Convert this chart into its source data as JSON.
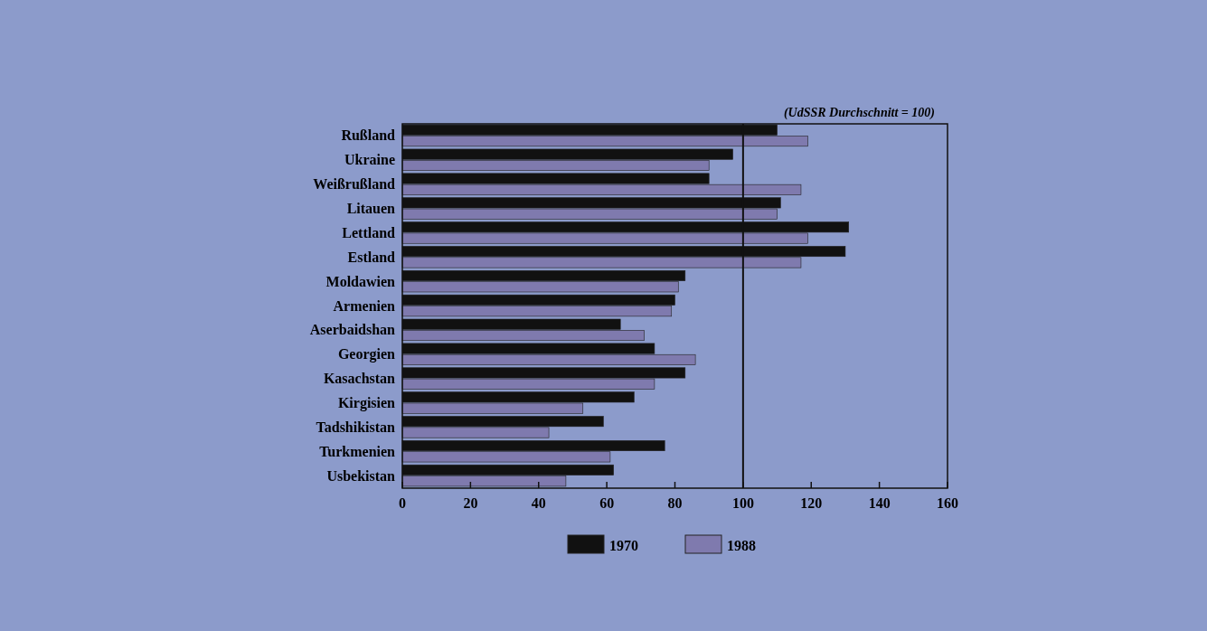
{
  "chart_data": {
    "type": "bar",
    "orientation": "horizontal",
    "categories": [
      "Rußland",
      "Ukraine",
      "Weißrußland",
      "Litauen",
      "Lettland",
      "Estland",
      "Moldawien",
      "Armenien",
      "Aserbaidshan",
      "Georgien",
      "Kasachstan",
      "Kirgisien",
      "Tadshikistan",
      "Turkmenien",
      "Usbekistan"
    ],
    "series": [
      {
        "name": "1970",
        "color": "#111111",
        "values": [
          110,
          97,
          90,
          111,
          131,
          130,
          83,
          80,
          64,
          74,
          83,
          68,
          59,
          77,
          62
        ]
      },
      {
        "name": "1988",
        "color": "#7f7aae",
        "values": [
          119,
          90,
          117,
          110,
          119,
          117,
          81,
          79,
          71,
          86,
          74,
          53,
          43,
          61,
          48
        ]
      }
    ],
    "xlim": [
      0,
      160
    ],
    "xticks": [
      0,
      20,
      40,
      60,
      80,
      100,
      120,
      140,
      160
    ],
    "ref_lines": [
      {
        "axis": "x",
        "value": 100
      }
    ],
    "annotations": [
      "(UdSSR Durchschnitt = 100)"
    ],
    "grid": false,
    "legend": "bottom"
  }
}
